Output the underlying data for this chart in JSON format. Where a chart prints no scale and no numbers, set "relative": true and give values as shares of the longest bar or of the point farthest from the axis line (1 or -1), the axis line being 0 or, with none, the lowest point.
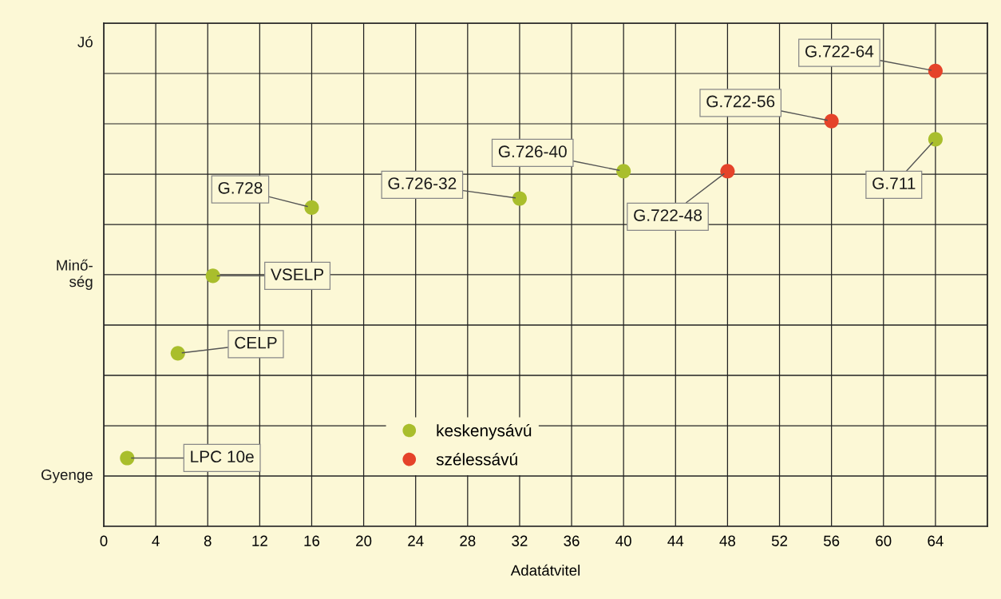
{
  "chart_data": {
    "type": "scatter",
    "xlabel": "Adatátvitel",
    "xlim": [
      0,
      68
    ],
    "xticks": [
      0,
      4,
      8,
      12,
      16,
      20,
      24,
      28,
      32,
      36,
      40,
      44,
      48,
      52,
      56,
      60,
      64,
      {
        "value": 68,
        "label": null
      }
    ],
    "relative": true,
    "grid": true,
    "marker": "circle",
    "legend": "bottom",
    "series": [
      {
        "name": "keskenysávú",
        "color": "#a9be2c",
        "x": [
          1.8,
          5.7,
          8.4,
          16,
          32,
          40,
          64
        ],
        "values": [
          0.15,
          0.38,
          0.55,
          0.7,
          0.72,
          0.78,
          0.85
        ]
      },
      {
        "name": "szélessávú",
        "color": "#e5432a",
        "x": [
          48,
          56,
          64
        ],
        "values": [
          0.78,
          0.89,
          1
        ]
      }
    ],
    "annotations": [
      {
        "text": "LPC 10e",
        "x": 1.8,
        "y": 0.15
      },
      {
        "text": "CELP",
        "x": 5.7,
        "y": 0.38
      },
      {
        "text": "VSELP",
        "x": 8.4,
        "y": 0.55
      },
      {
        "text": "G.728",
        "x": 16,
        "y": 0.7
      },
      {
        "text": "G.726-32",
        "x": 32,
        "y": 0.72
      },
      {
        "text": "G.726-40",
        "x": 40,
        "y": 0.78
      },
      {
        "text": "G.722-48",
        "x": 48,
        "y": 0.78
      },
      {
        "text": "G.722-56",
        "x": 56,
        "y": 0.89
      },
      {
        "text": "G.722-64",
        "x": 64,
        "y": 1
      },
      {
        "text": "G.711",
        "x": 64,
        "y": 0.85
      },
      "Jó",
      "Minő-\nség",
      "Gyenge"
    ]
  }
}
